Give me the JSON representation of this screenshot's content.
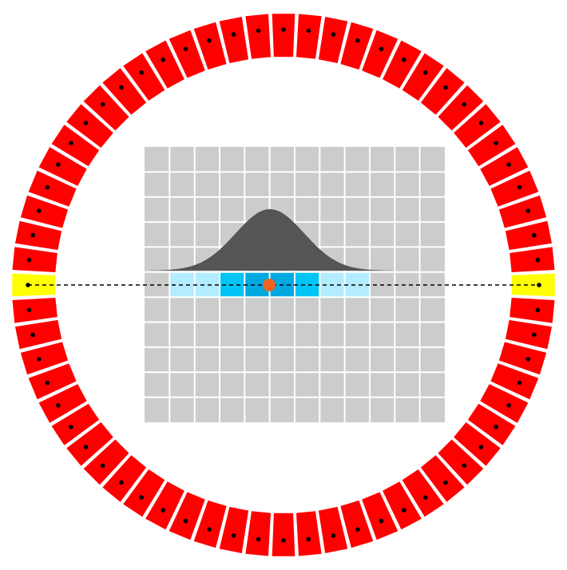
{
  "diagram": {
    "detector_ring": {
      "element_count": 64,
      "highlighted_elements": [
        0,
        32
      ],
      "colors": {
        "element": "#ff0000",
        "highlighted": "#ffff00",
        "element_dot": "#000000"
      }
    },
    "image_grid": {
      "columns": 12,
      "rows": 11,
      "cell_color": "#cccccc",
      "line_color": "#ffffff"
    },
    "projection_row": {
      "row_index": 5,
      "weights": [
        {
          "column": 1,
          "color": "#b3ecff"
        },
        {
          "column": 2,
          "color": "#b3ecff"
        },
        {
          "column": 3,
          "color": "#00c4f5"
        },
        {
          "column": 4,
          "color": "#00a8e0"
        },
        {
          "column": 5,
          "color": "#00a8e0"
        },
        {
          "column": 6,
          "color": "#00c4f5"
        },
        {
          "column": 7,
          "color": "#b3ecff"
        },
        {
          "column": 8,
          "color": "#b3ecff"
        }
      ]
    },
    "gaussian_profile": {
      "color": "#555555"
    },
    "line_of_response": {
      "style": "dashed",
      "color": "#000000"
    },
    "annihilation_point": {
      "color": "#f26322"
    }
  }
}
